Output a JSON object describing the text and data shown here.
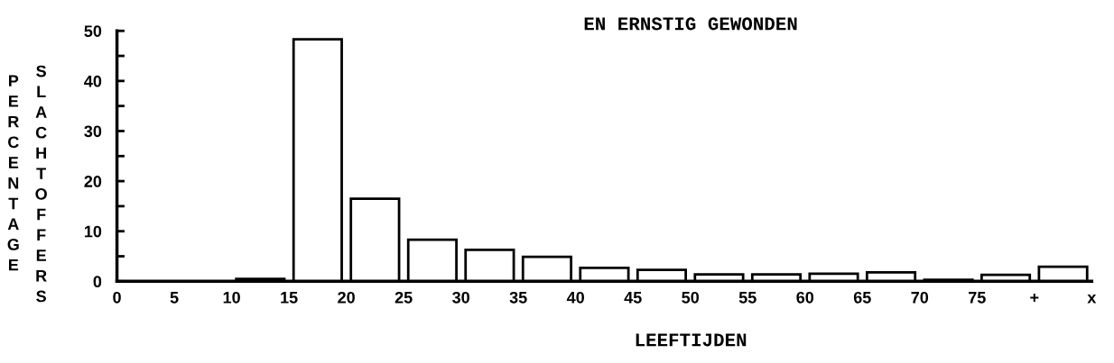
{
  "chart_data": {
    "type": "histogram",
    "title": "EN ERNSTIG GEWONDEN",
    "xlabel": "LEEFTIJDEN",
    "ylabel": "PERCENTAGE SLACHTOFFERS",
    "bins": [
      0,
      5,
      10,
      15,
      20,
      25,
      30,
      35,
      40,
      45,
      50,
      55,
      60,
      65,
      70,
      75,
      80,
      85
    ],
    "values": [
      0,
      0,
      0.5,
      48.3,
      16.5,
      8.3,
      6.3,
      4.9,
      2.7,
      2.3,
      1.4,
      1.4,
      1.5,
      1.8,
      0.3,
      1.3,
      2.9
    ],
    "color": "#ffffff",
    "xlim": [
      0,
      85
    ],
    "xticks": [
      0,
      5,
      10,
      15,
      20,
      25,
      30,
      35,
      40,
      45,
      50,
      55,
      60,
      65,
      70,
      75,
      {
        "value": 80,
        "label": "+"
      },
      {
        "value": 85,
        "label": "x"
      }
    ],
    "ylim": [
      0,
      50
    ],
    "yticks": [
      0,
      {
        "value": 5,
        "label": null
      },
      10,
      {
        "value": 15,
        "label": null
      },
      20,
      {
        "value": 25,
        "label": null
      },
      30,
      {
        "value": 35,
        "label": null
      },
      40,
      {
        "value": 45,
        "label": null
      },
      50
    ],
    "grid": false,
    "legend": false
  }
}
